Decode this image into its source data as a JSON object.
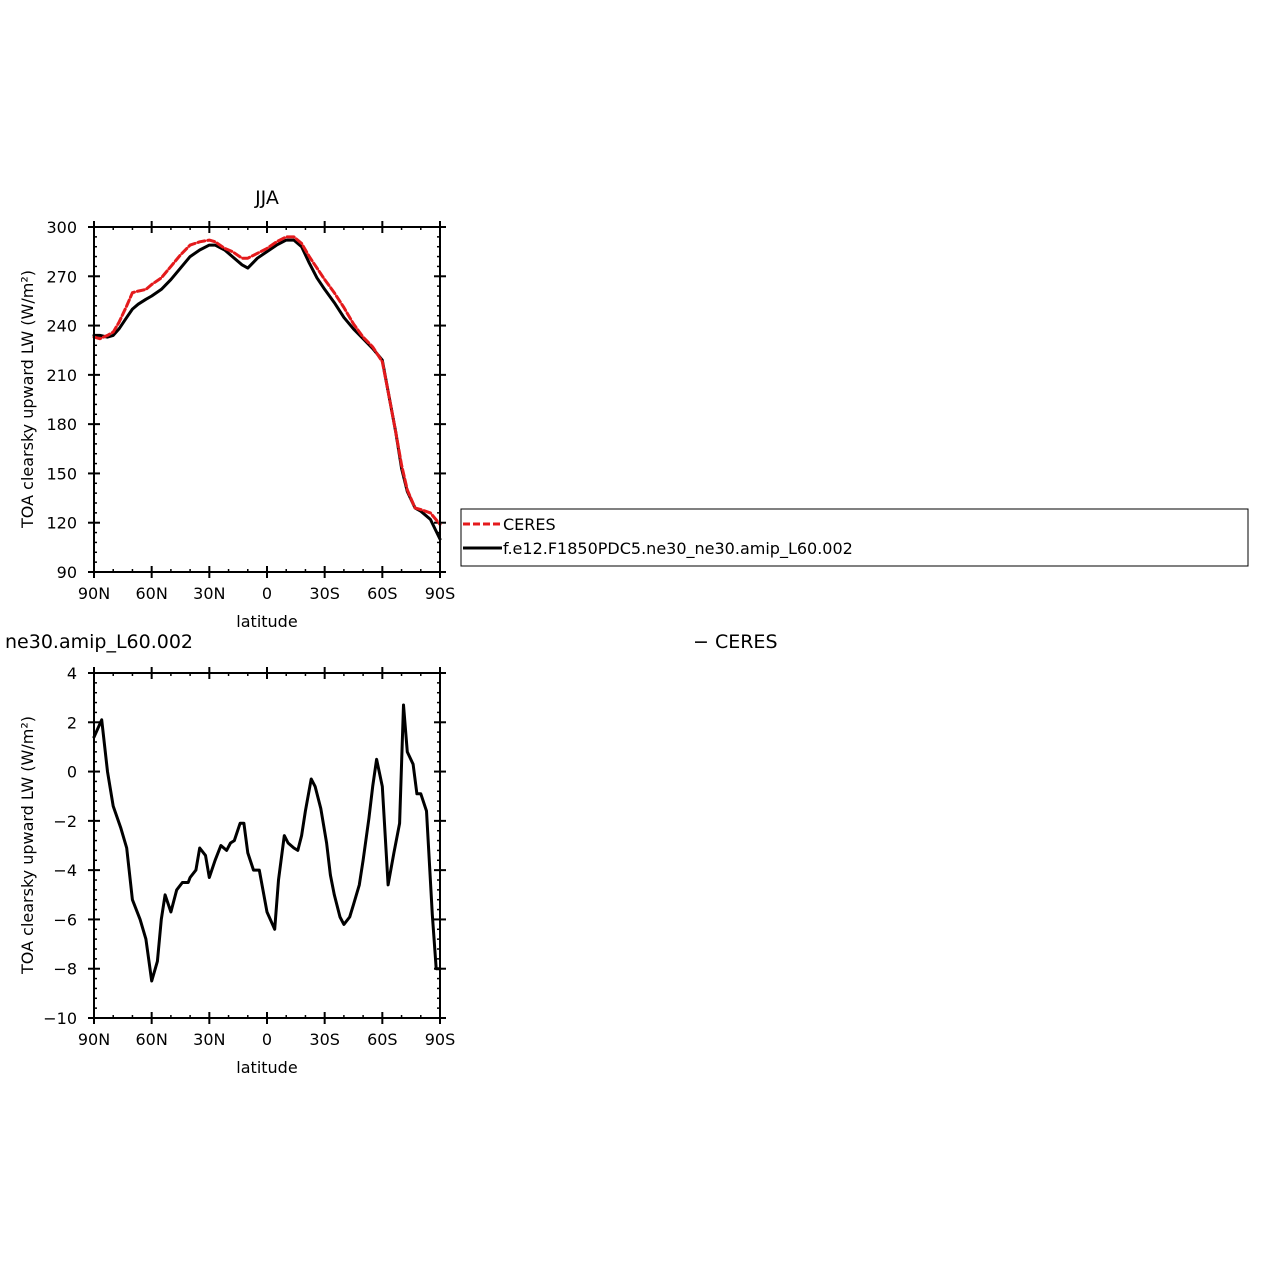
{
  "chart_data": [
    {
      "type": "line",
      "title": "JJA",
      "xlabel": "latitude",
      "ylabel": "TOA clearsky upward LW (W/m²)",
      "xlim": [
        90,
        -90
      ],
      "ylim": [
        90,
        300
      ],
      "xticks": [
        90,
        60,
        30,
        0,
        -30,
        -60,
        -90
      ],
      "xtick_labels": [
        "90N",
        "60N",
        "30N",
        "0",
        "30S",
        "60S",
        "90S"
      ],
      "yticks": [
        90,
        120,
        150,
        180,
        210,
        240,
        270,
        300
      ],
      "ytick_labels": [
        "90",
        "120",
        "150",
        "180",
        "210",
        "240",
        "270",
        "300"
      ],
      "legend_position": "right",
      "series": [
        {
          "name": "CERES",
          "color": "#e41a1c",
          "dash": "dashed",
          "x": [
            90,
            87,
            83,
            80,
            77,
            73,
            70,
            67,
            63,
            60,
            55,
            50,
            45,
            40,
            35,
            30,
            27,
            22,
            18,
            13,
            10,
            5,
            0,
            -5,
            -10,
            -14,
            -18,
            -22,
            -26,
            -30,
            -35,
            -40,
            -45,
            -50,
            -55,
            -60,
            -63,
            -67,
            -70,
            -73,
            -77,
            -80,
            -85,
            -90
          ],
          "y": [
            233,
            232,
            234,
            236,
            242,
            252,
            260,
            261,
            262,
            265,
            269,
            276,
            283,
            289,
            291,
            292,
            291,
            287,
            285,
            281,
            281,
            284,
            287,
            291,
            294,
            294,
            290,
            282,
            275,
            268,
            260,
            251,
            241,
            233,
            227,
            218,
            200,
            175,
            155,
            140,
            129,
            128,
            126,
            119
          ]
        },
        {
          "name": "f.e12.F1850PDC5.ne30_ne30.amip_L60.002",
          "color": "#000000",
          "dash": "solid",
          "x": [
            90,
            87,
            83,
            80,
            77,
            73,
            70,
            67,
            63,
            60,
            55,
            50,
            45,
            40,
            35,
            30,
            27,
            22,
            18,
            13,
            10,
            5,
            0,
            -5,
            -10,
            -14,
            -18,
            -22,
            -26,
            -30,
            -35,
            -40,
            -45,
            -50,
            -55,
            -60,
            -63,
            -67,
            -70,
            -73,
            -77,
            -80,
            -85,
            -90
          ],
          "y": [
            234,
            234,
            233,
            234,
            238,
            245,
            250,
            253,
            256,
            258,
            262,
            268,
            275,
            282,
            286,
            289,
            289,
            286,
            282,
            277,
            275,
            281,
            285,
            289,
            292,
            292,
            288,
            278,
            269,
            262,
            254,
            245,
            238,
            232,
            226,
            219,
            200,
            175,
            153,
            139,
            129,
            127,
            122,
            110
          ]
        }
      ]
    },
    {
      "type": "line",
      "title": "ne30.amip_L60.002",
      "title_suffix": "− CERES",
      "xlabel": "latitude",
      "ylabel": "TOA clearsky upward LW (W/m²)",
      "xlim": [
        90,
        -90
      ],
      "ylim": [
        -10,
        4
      ],
      "xticks": [
        90,
        60,
        30,
        0,
        -30,
        -60,
        -90
      ],
      "xtick_labels": [
        "90N",
        "60N",
        "30N",
        "0",
        "30S",
        "60S",
        "90S"
      ],
      "yticks": [
        -10,
        -8,
        -6,
        -4,
        -2,
        0,
        2,
        4
      ],
      "ytick_labels": [
        "−10",
        "−8",
        "−6",
        "−4",
        "−2",
        "0",
        "2",
        "4"
      ],
      "series": [
        {
          "color": "#000000",
          "x": [
            90,
            86,
            83,
            80,
            76,
            73,
            70,
            66,
            63,
            60,
            57,
            55,
            53,
            50,
            47,
            44,
            41,
            40,
            37,
            35,
            32,
            30,
            27,
            24,
            21,
            19,
            17,
            14,
            12,
            10,
            7,
            4,
            0,
            -4,
            -6,
            -9,
            -11,
            -14,
            -16,
            -18,
            -20,
            -23,
            -25,
            -28,
            -31,
            -33,
            -35,
            -38,
            -40,
            -43,
            -45,
            -48,
            -50,
            -53,
            -55,
            -57,
            -60,
            -63,
            -66,
            -69,
            -71,
            -73,
            -76,
            -78,
            -80,
            -83,
            -86,
            -88,
            -90
          ],
          "y": [
            1.4,
            2.1,
            0.0,
            -1.4,
            -2.3,
            -3.1,
            -5.2,
            -6.0,
            -6.8,
            -8.5,
            -7.7,
            -6.0,
            -5.0,
            -5.7,
            -4.8,
            -4.5,
            -4.5,
            -4.3,
            -4.0,
            -3.1,
            -3.4,
            -4.3,
            -3.6,
            -3.0,
            -3.2,
            -2.9,
            -2.8,
            -2.1,
            -2.1,
            -3.3,
            -4.0,
            -4.0,
            -5.7,
            -6.4,
            -4.4,
            -2.6,
            -2.9,
            -3.1,
            -3.2,
            -2.6,
            -1.6,
            -0.3,
            -0.6,
            -1.5,
            -2.9,
            -4.2,
            -5.0,
            -5.9,
            -6.2,
            -5.9,
            -5.4,
            -4.6,
            -3.6,
            -1.9,
            -0.6,
            0.5,
            -0.6,
            -4.6,
            -3.3,
            -2.1,
            2.7,
            0.8,
            0.3,
            -0.9,
            -0.9,
            -1.6,
            -5.8,
            -8.0,
            -8.0
          ]
        }
      ]
    }
  ]
}
